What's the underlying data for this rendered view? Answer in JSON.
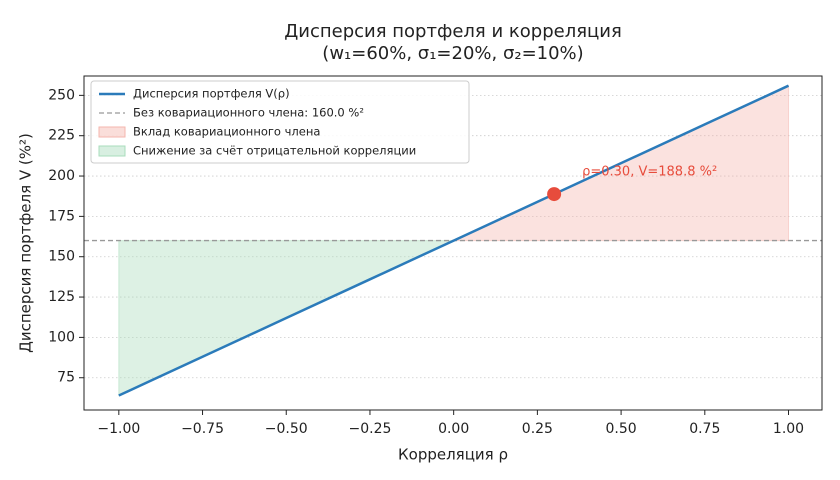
{
  "chart_data": {
    "type": "line",
    "title": "Дисперсия портфеля и корреляция",
    "subtitle": "(w₁=60%, σ₁=20%, σ₂=10%)",
    "xlabel": "Корреляция ρ",
    "ylabel": "Дисперсия портфеля V (%²)",
    "x": [
      -1,
      -0.75,
      -0.5,
      -0.25,
      0,
      0.25,
      0.5,
      0.75,
      1
    ],
    "series": [
      {
        "name": "Дисперсия портфеля V(ρ)",
        "color": "#2b7bba",
        "values": [
          64,
          88,
          112,
          136,
          160,
          184,
          208,
          232,
          256
        ]
      }
    ],
    "baseline": {
      "name": "Без ковариационного члена: 160.0 %²",
      "value": 160,
      "color": "#999999"
    },
    "fills": [
      {
        "name": "Вклад ковариационного члена",
        "color": "#f4b6ae"
      },
      {
        "name": "Снижение за счёт отрицательной корреляции",
        "color": "#a9dcbc"
      }
    ],
    "point": {
      "x": 0.3,
      "y": 188.8,
      "color": "#e74c3c",
      "label": "ρ=0.30, V=188.8 %²"
    },
    "xlim": [
      -1.104,
      1.1
    ],
    "ylim": [
      55,
      262
    ],
    "xticks": [
      {
        "value": -1,
        "label": "−1.00"
      },
      {
        "value": -0.75,
        "label": "−0.75"
      },
      {
        "value": -0.5,
        "label": "−0.50"
      },
      {
        "value": -0.25,
        "label": "−0.25"
      },
      {
        "value": 0,
        "label": "0.00"
      },
      {
        "value": 0.25,
        "label": "0.25"
      },
      {
        "value": 0.5,
        "label": "0.50"
      },
      {
        "value": 0.75,
        "label": "0.75"
      },
      {
        "value": 1,
        "label": "1.00"
      }
    ],
    "yticks": [
      75,
      100,
      125,
      150,
      175,
      200,
      225,
      250
    ],
    "grid": true,
    "legend": "upper left"
  }
}
